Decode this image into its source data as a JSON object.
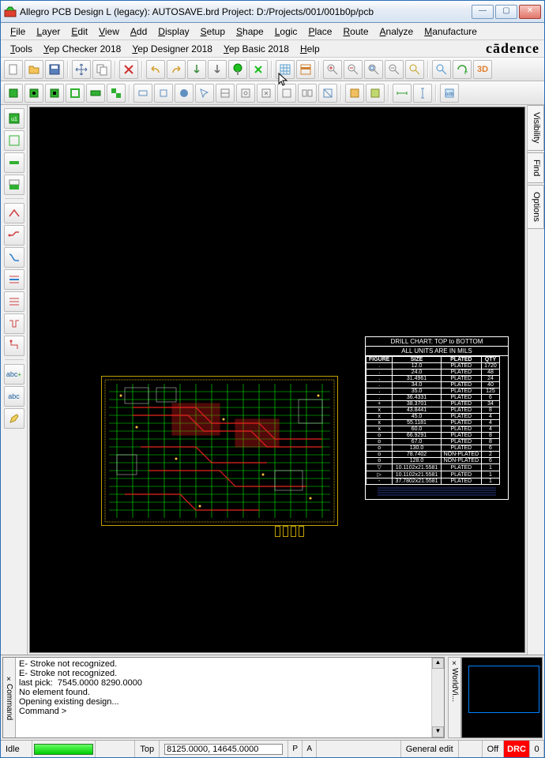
{
  "window": {
    "title": "Allegro PCB Design L (legacy): AUTOSAVE.brd  Project: D:/Projects/001/001b0p/pcb"
  },
  "menu1": [
    "File",
    "Layer",
    "Edit",
    "View",
    "Add",
    "Display",
    "Setup",
    "Shape",
    "Logic",
    "Place",
    "Route",
    "Analyze",
    "Manufacture"
  ],
  "menu2": [
    "Tools",
    "Yep Checker 2018",
    "Yep Designer 2018",
    "Yep Basic 2018",
    "Help"
  ],
  "brand": "cādence",
  "side_tabs": [
    "Visibility",
    "Find",
    "Options"
  ],
  "drill": {
    "title": "DRILL CHART: TOP to BOTTOM",
    "subtitle": "ALL UNITS ARE IN MILS",
    "columns": [
      "FIGURE",
      "SIZE",
      "PLATED",
      "QTY"
    ],
    "rows": [
      [
        ".",
        "12.0",
        "PLATED",
        "1720"
      ],
      [
        ".",
        "24.0",
        "PLATED",
        "48"
      ],
      [
        ".",
        "31.4961",
        "PLATED",
        "24"
      ],
      [
        ".",
        "34.0",
        "PLATED",
        "40"
      ],
      [
        ".",
        "35.0",
        "PLATED",
        "125"
      ],
      [
        ".",
        "36.4331",
        "PLATED",
        "6"
      ],
      [
        "+",
        "38.3701",
        "PLATED",
        "34"
      ],
      [
        "x",
        "43.8441",
        "PLATED",
        "8"
      ],
      [
        "x",
        "45.0",
        "PLATED",
        "4"
      ],
      [
        "x",
        "55.1181",
        "PLATED",
        "4"
      ],
      [
        "x",
        "60.0",
        "PLATED",
        "4"
      ],
      [
        "o",
        "66.9291",
        "PLATED",
        "8"
      ],
      [
        "o",
        "67.0",
        "PLATED",
        "8"
      ],
      [
        "o",
        "130.0",
        "PLATED",
        "6"
      ],
      [
        "o",
        "78.7402",
        "NON-PLATED",
        "2"
      ],
      [
        "o",
        "128.0",
        "NON-PLATED",
        "6"
      ],
      [
        "▽",
        "10.1102x21.5581",
        "PLATED",
        "1"
      ],
      [
        "▷",
        "10.1102x21.5581",
        "PLATED",
        "1"
      ],
      [
        "-",
        "37.7802x21.5581",
        "PLATED",
        "1"
      ]
    ]
  },
  "cmd": {
    "label": "Command",
    "lines": "E- Stroke not recognized.\nE- Stroke not recognized.\nlast pick:  7545.0000 8290.0000\nNo element found.\nOpening existing design...\nCommand >"
  },
  "worldview_label": "WorldVi...",
  "status": {
    "idle": "Idle",
    "top": "Top",
    "coords": "8125.0000, 14645.0000",
    "p": "P",
    "a": "A",
    "mode": "General edit",
    "off": "Off",
    "drc": "DRC",
    "zero": "0"
  },
  "pcb": {
    "outline_color": "#c0a000",
    "trace_color": "#00ff00",
    "trace_color2": "#ff0000",
    "via_color": "#ffc040"
  }
}
